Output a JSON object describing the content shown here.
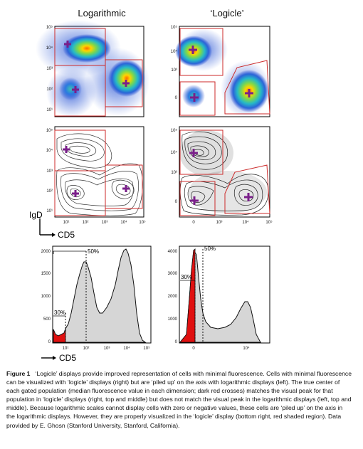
{
  "figure": {
    "col_left_title": "Logarithmic",
    "col_right_title": "‘Logicle’",
    "axis_y_label": "IgD",
    "axis_x_label": "CD5",
    "log_ticks": [
      "10⁰",
      "10¹",
      "10²",
      "10³",
      "10⁴",
      "10⁵"
    ],
    "logicle_y_ticks": [
      "0",
      "10³",
      "10⁴",
      "10⁵"
    ],
    "logicle_x_ticks": [
      "0",
      "10³",
      "10⁴",
      "10⁵"
    ],
    "hist_left_y_ticks": [
      "0",
      "500",
      "1000",
      "1500",
      "2000"
    ],
    "hist_right_y_ticks": [
      "0",
      "1000",
      "2000",
      "3000",
      "4000"
    ],
    "hist_left_x_ticks": [
      "10¹",
      "10²",
      "10³",
      "10⁴",
      "10⁵"
    ],
    "hist_right_x_ticks": [
      "0",
      "10⁴"
    ],
    "annot_50": "50%",
    "annot_30": "30%",
    "colors": {
      "gate": "#cc2a2a",
      "cross": "#7a1f8a",
      "fill_gray": "#d6d6d6",
      "fill_red": "#e01010"
    }
  },
  "caption": {
    "label": "Figure 1",
    "text": "‘Logicle’ displays provide improved representation of cells with minimal fluorescence. Cells with minimal fluorescence can be visualized with ‘logicle’ displays (right) but are ‘piled up’ on the axis with logarithmic displays (left). The true center of each gated population (median fluorescence value in each dimension; dark red crosses) matches the visual peak for that population in ‘logicle’ displays (right, top and middle) but does not match the visual peak in the logarithmic displays (left, top and middle). Because logarithmic scales cannot display cells with zero or negative values, these cells are ‘piled up’ on the axis in the logarithmic displays. However, they are properly visualized in the ‘logicle’ display (bottom right, red shaded region). Data provided by E. Ghosn (Stanford University, Stanford, California)."
  },
  "chart_data": [
    {
      "type": "heatmap",
      "panel": "top-left",
      "scale": "log",
      "populations": [
        {
          "x": 10,
          "y": 12000
        },
        {
          "x": 12,
          "y": 40
        },
        {
          "x": 5000,
          "y": 100
        }
      ]
    },
    {
      "type": "heatmap",
      "panel": "top-right",
      "scale": "logicle",
      "populations": [
        {
          "x": 0,
          "y": 12000
        },
        {
          "x": 0,
          "y": 0
        },
        {
          "x": 5000,
          "y": 0
        }
      ]
    },
    {
      "type": "scatter",
      "panel": "middle-left",
      "scale": "log",
      "populations": [
        {
          "x": 10,
          "y": 12000
        },
        {
          "x": 12,
          "y": 40
        },
        {
          "x": 5000,
          "y": 100
        }
      ]
    },
    {
      "type": "scatter",
      "panel": "middle-right",
      "scale": "logicle",
      "populations": [
        {
          "x": 0,
          "y": 12000
        },
        {
          "x": 0,
          "y": 0
        },
        {
          "x": 5000,
          "y": 0
        }
      ]
    },
    {
      "type": "area",
      "panel": "bottom-left",
      "xscale": "log",
      "x": [
        1,
        1.2,
        1.5,
        2,
        3,
        5,
        10,
        20,
        30,
        50,
        80,
        100,
        150,
        200,
        300,
        500,
        800,
        1000,
        2000,
        3000,
        5000,
        8000,
        10000,
        20000,
        50000,
        100000
      ],
      "y": [
        0,
        280,
        200,
        120,
        100,
        140,
        250,
        600,
        1000,
        1500,
        1750,
        1800,
        1600,
        1100,
        700,
        500,
        500,
        600,
        1000,
        1500,
        1900,
        2000,
        1900,
        900,
        100,
        0
      ],
      "ylim": [
        0,
        2100
      ]
    },
    {
      "type": "area",
      "panel": "bottom-right",
      "xscale": "logicle",
      "x": [
        -1,
        -0.5,
        0,
        0.3,
        0.6,
        1,
        1.5,
        2,
        2.5,
        3,
        3.5,
        4,
        4.5,
        5
      ],
      "y": [
        0,
        500,
        4200,
        3000,
        1200,
        700,
        600,
        650,
        900,
        1400,
        1700,
        1200,
        300,
        0
      ],
      "ylim": [
        0,
        4300
      ]
    }
  ]
}
